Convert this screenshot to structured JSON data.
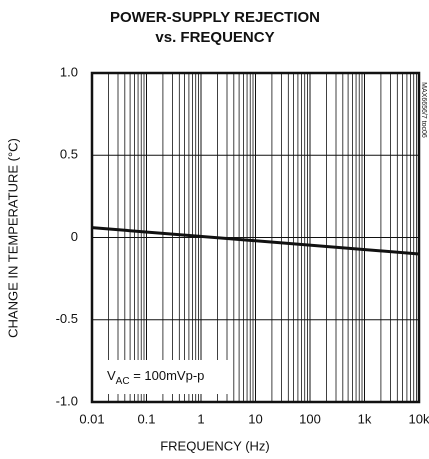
{
  "chart_data": {
    "type": "line",
    "title": [
      "POWER-SUPPLY REJECTION",
      "vs. FREQUENCY"
    ],
    "x_label": "FREQUENCY (Hz)",
    "y_label": "CHANGE IN TEMPERATURE (°C)",
    "note": "MAX6656/7 toc06",
    "annotation": {
      "symbol": "V",
      "subscript": "AC",
      "text": " = 100mVp-p"
    },
    "x": [
      0.01,
      10000
    ],
    "series": [
      {
        "color": "#111111",
        "values": [
          0.06,
          -0.1
        ]
      }
    ],
    "xlim": [
      0.01,
      10000
    ],
    "xscale": "log",
    "xticks": [
      0.01,
      0.1,
      1,
      10,
      100,
      {
        "value": 1000,
        "label": "1k"
      },
      {
        "value": 10000,
        "label": "10k"
      }
    ],
    "ylim": [
      -1,
      1
    ],
    "yticks": [
      {
        "value": -1,
        "label": "-1.0"
      },
      -0.5,
      0,
      0.5,
      {
        "value": 1,
        "label": "1.0"
      }
    ],
    "grid": true
  }
}
